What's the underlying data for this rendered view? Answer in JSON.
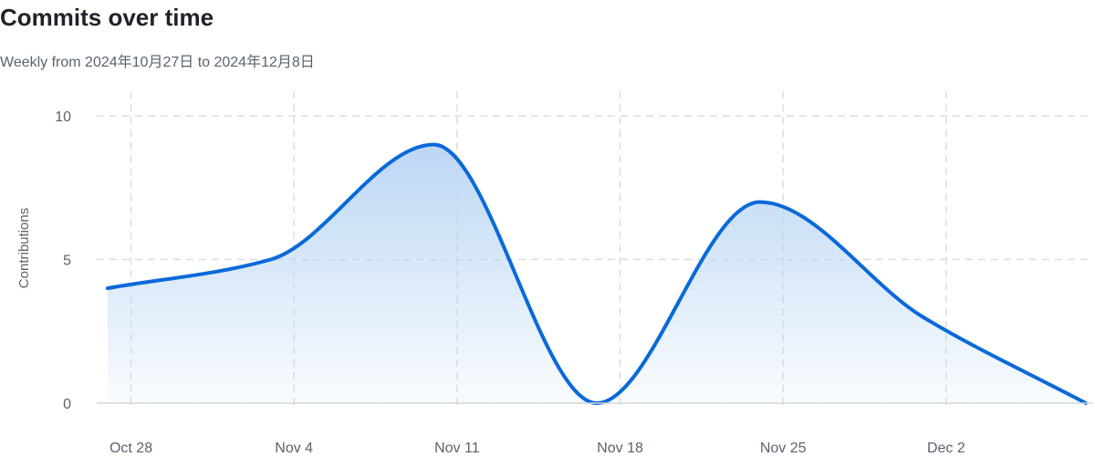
{
  "header": {
    "title": "Commits over time",
    "subtitle": "Weekly from 2024年10月27日 to 2024年12月8日"
  },
  "colors": {
    "line": "#0969da",
    "fill_top": "#bcd7f4",
    "grid": "#d8dee4",
    "baseline": "#d0d7de"
  },
  "chart_data": {
    "type": "area",
    "title": "Commits over time",
    "subtitle": "Weekly from 2024年10月27日 to 2024年12月8日",
    "xlabel": "",
    "ylabel": "Contributions",
    "ylim": [
      0,
      10
    ],
    "yticks": [
      0,
      5,
      10
    ],
    "xlim": [
      "2024-10-27",
      "2024-12-08"
    ],
    "xticks": [
      {
        "date": "2024-10-28",
        "label": "Oct 28"
      },
      {
        "date": "2024-11-04",
        "label": "Nov 4"
      },
      {
        "date": "2024-11-11",
        "label": "Nov 11"
      },
      {
        "date": "2024-11-18",
        "label": "Nov 18"
      },
      {
        "date": "2024-11-25",
        "label": "Nov 25"
      },
      {
        "date": "2024-12-02",
        "label": "Dec 2"
      }
    ],
    "grid": true,
    "series": [
      {
        "x": [
          "2024-10-27",
          "2024-11-03",
          "2024-11-10",
          "2024-11-17",
          "2024-11-24",
          "2024-12-01",
          "2024-12-08"
        ],
        "y": [
          4,
          5,
          9,
          0,
          7,
          3,
          0
        ]
      }
    ]
  }
}
